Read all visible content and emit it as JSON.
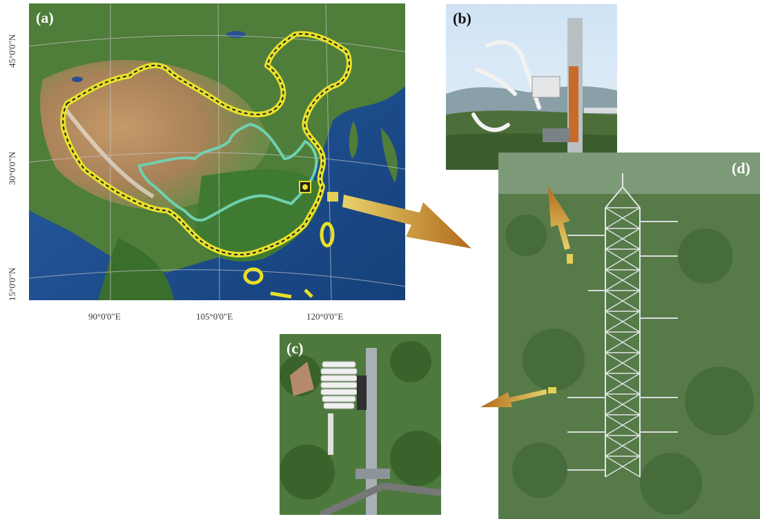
{
  "panels": {
    "a": {
      "label": "(a)"
    },
    "b": {
      "label": "(b)"
    },
    "c": {
      "label": "(c)"
    },
    "d": {
      "label": "(d)"
    }
  },
  "map": {
    "x_ticks": [
      "90°0'0\"E",
      "105°0'0\"E",
      "120°0'0\"E"
    ],
    "y_ticks": [
      "45°0'0\"N",
      "30°0'0\"N",
      "15°0'0\"N"
    ]
  },
  "colors": {
    "border": "#e6e02a",
    "river": "#6fd1b0",
    "arrow": "#c97a1e"
  }
}
